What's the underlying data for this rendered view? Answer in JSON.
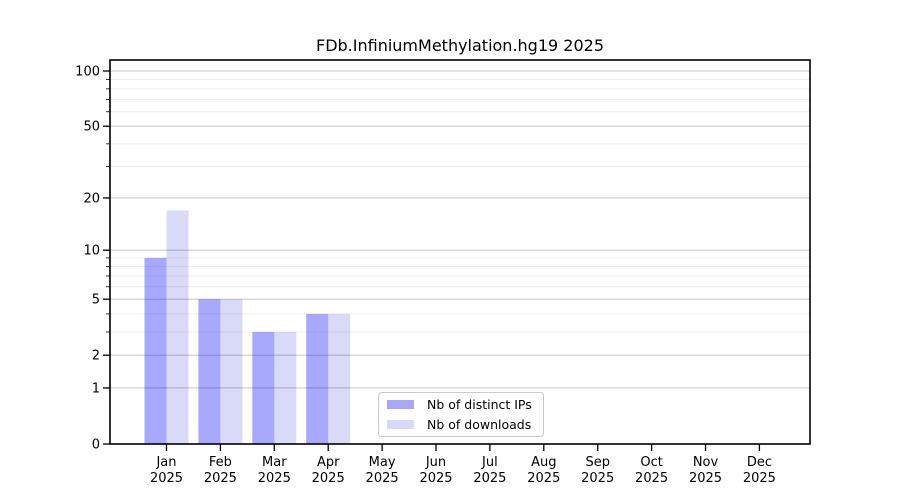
{
  "chart_data": {
    "type": "bar",
    "title": "FDb.InfiniumMethylation.hg19 2025",
    "categories": [
      "Jan 2025",
      "Feb 2025",
      "Mar 2025",
      "Apr 2025",
      "May 2025",
      "Jun 2025",
      "Jul 2025",
      "Aug 2025",
      "Sep 2025",
      "Oct 2025",
      "Nov 2025",
      "Dec 2025"
    ],
    "series": [
      {
        "name": "Nb of distinct IPs",
        "values": [
          9,
          5,
          3,
          4,
          0,
          0,
          0,
          0,
          0,
          0,
          0,
          0
        ],
        "color": "#a8a8fa",
        "fill": "rgba(0,0,250,0.34)"
      },
      {
        "name": "Nb of downloads",
        "values": [
          17,
          5,
          3,
          4,
          0,
          0,
          0,
          0,
          0,
          0,
          0,
          0
        ],
        "color": "#d8d8f8",
        "fill": "rgba(0,0,210,0.15)"
      }
    ],
    "xlabel": "",
    "ylabel": "",
    "yscale": "log1p",
    "ylim": [
      0,
      113
    ],
    "yticks": [
      0,
      1,
      2,
      5,
      10,
      20,
      50,
      100
    ],
    "yticks_minor": [
      3,
      4,
      6,
      7,
      8,
      9,
      30,
      40,
      60,
      70,
      80,
      90
    ],
    "grid": true,
    "legend_position": "lower center inside plot",
    "colors": {
      "bar_distinct_ips": "#a8a8fa",
      "bar_downloads": "#d8d8f8",
      "grid_major": "#cccccc",
      "grid_minor": "#ececec",
      "spine": "#000000",
      "text": "#000000",
      "legend_border": "#c9c9c9",
      "background": "#ffffff"
    }
  }
}
